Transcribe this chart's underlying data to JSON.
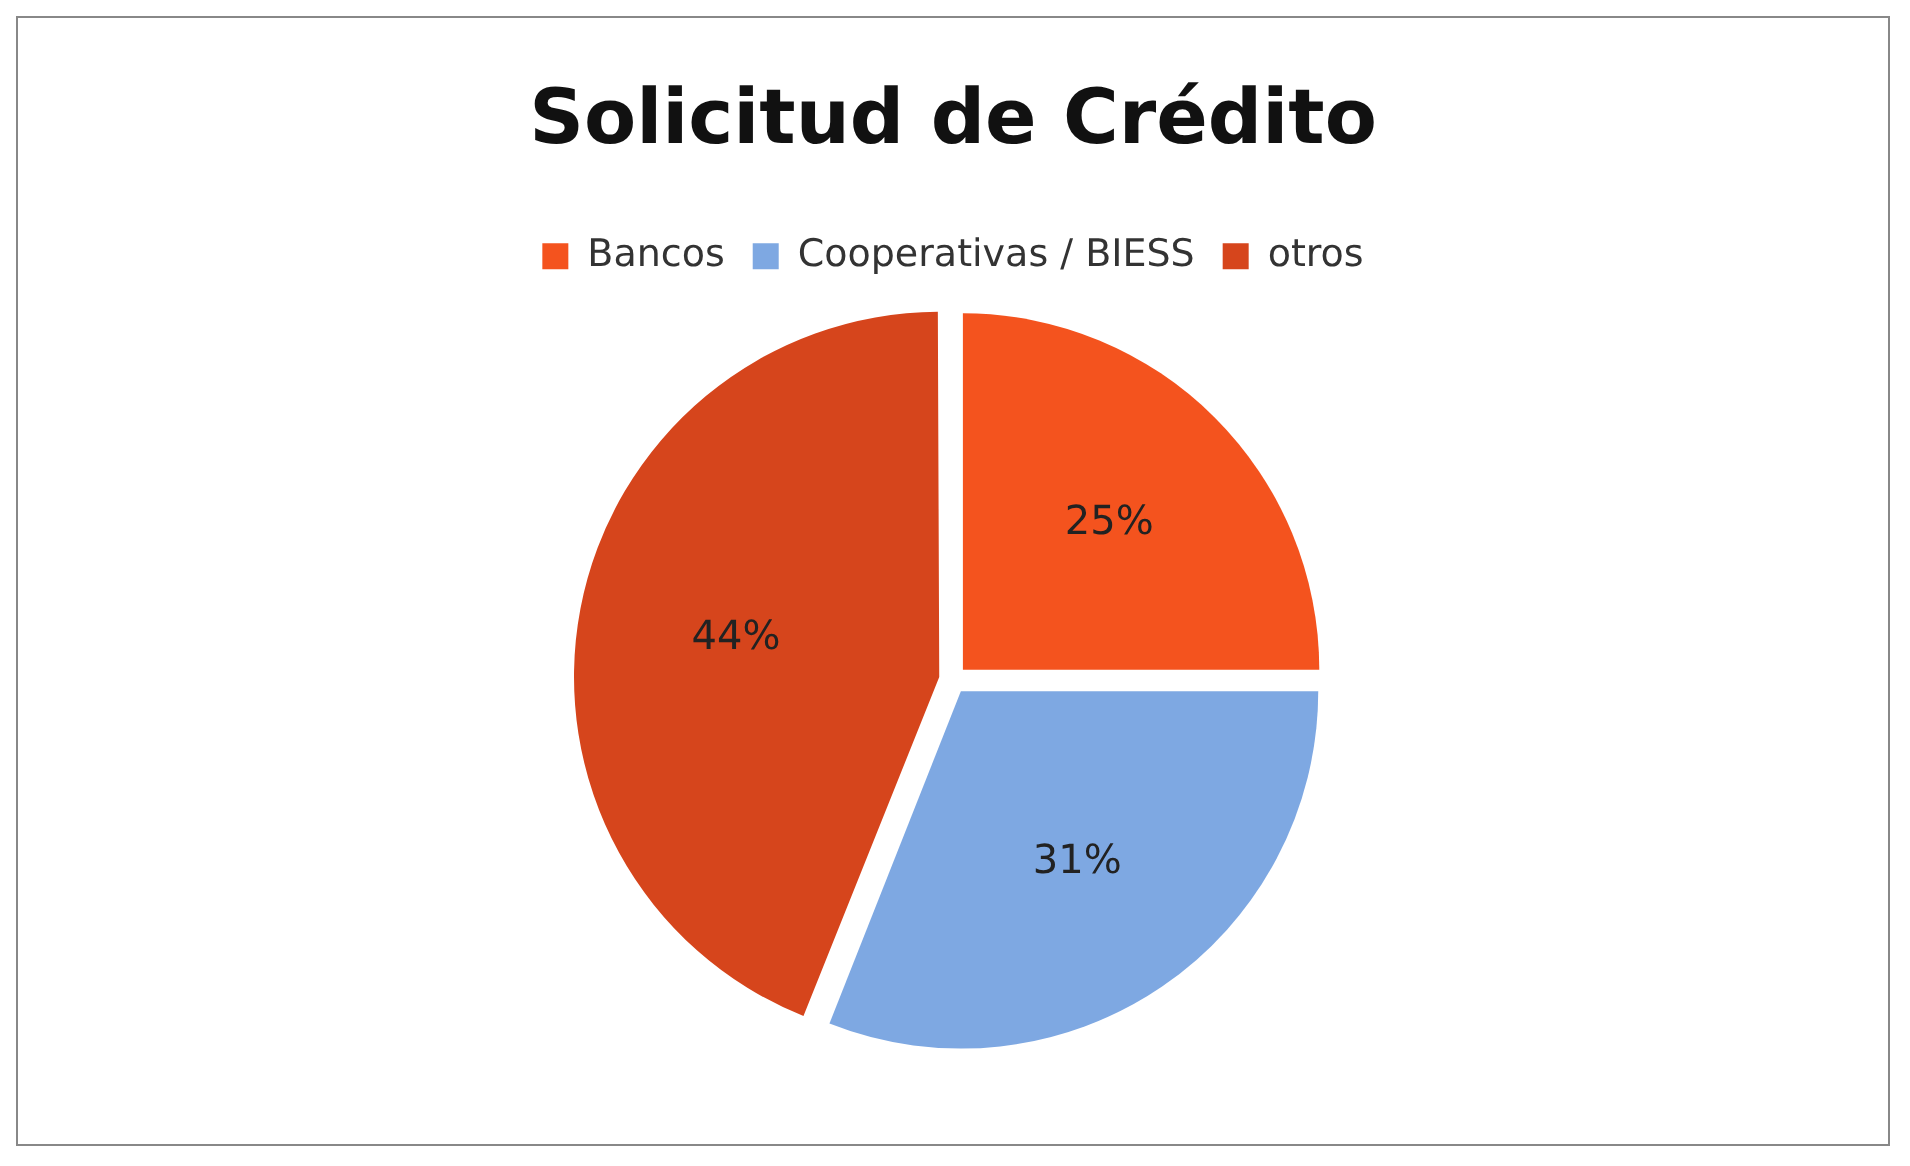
{
  "chart_data": {
    "type": "pie",
    "title": "Solicitud de Crédito",
    "categories": [
      "Bancos",
      "Cooperativas / BIESS",
      "otros"
    ],
    "values": [
      25,
      31,
      44
    ],
    "colors": [
      "#f4531e",
      "#7ea8e2",
      "#d6451c"
    ],
    "value_labels": [
      "25%",
      "31%",
      "44%"
    ],
    "legend": "top"
  }
}
